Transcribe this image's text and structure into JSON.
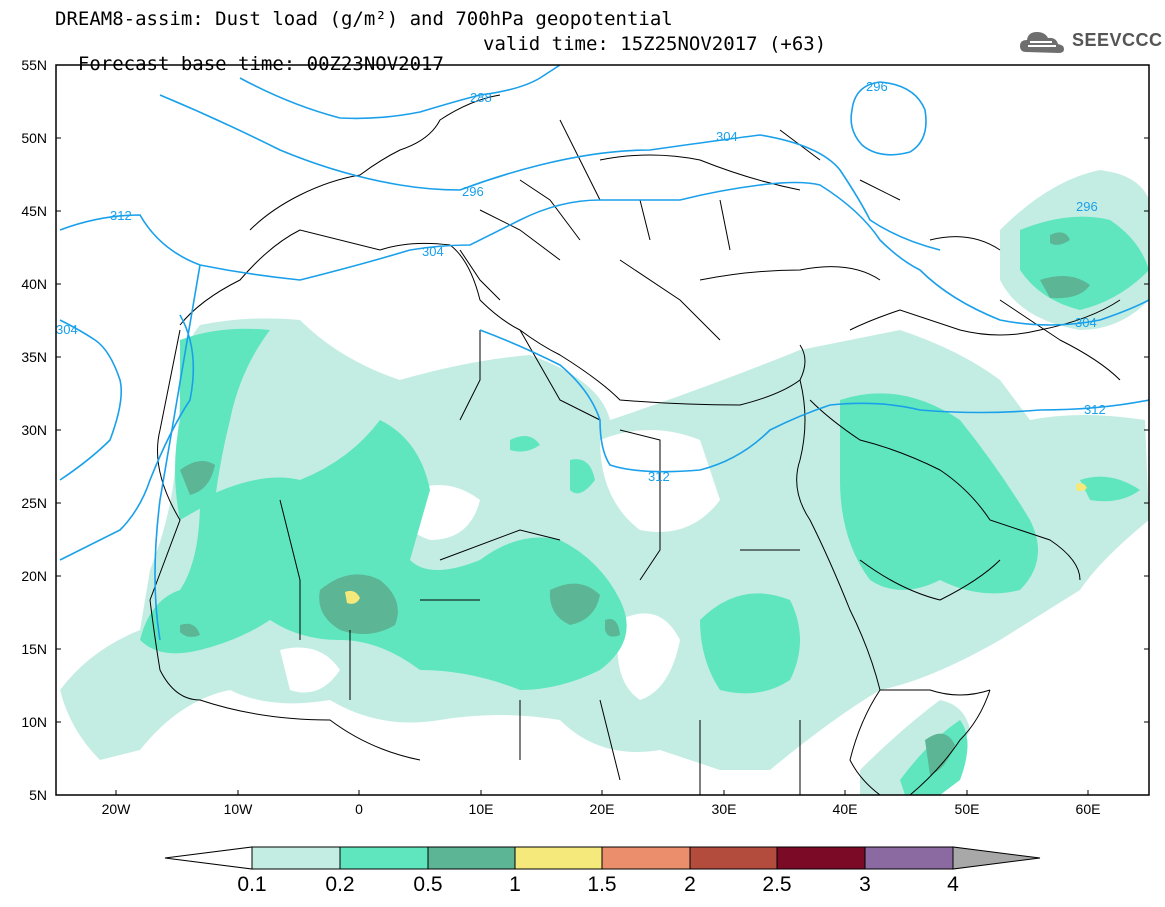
{
  "title": {
    "line1": "DREAM8-assim: Dust load (g/m²) and 700hPa geopotential",
    "forecast_base": "Forecast base time: 00Z23NOV2017",
    "valid_time": "valid time: 15Z25NOV2017 (+63)"
  },
  "logo": {
    "text": "SEEVCCC",
    "icon": "cloud-icon"
  },
  "map": {
    "lat_labels": [
      "55N",
      "50N",
      "45N",
      "40N",
      "35N",
      "30N",
      "25N",
      "20N",
      "15N",
      "10N",
      "5N"
    ],
    "lon_labels": [
      "20W",
      "10W",
      "0",
      "10E",
      "20E",
      "30E",
      "40E",
      "50E",
      "60E"
    ],
    "contour_labels": [
      "288",
      "296",
      "296",
      "296",
      "304",
      "304",
      "304",
      "304",
      "312",
      "312",
      "312"
    ]
  },
  "legend": {
    "labels": [
      "0.1",
      "0.2",
      "0.5",
      "1",
      "1.5",
      "2",
      "2.5",
      "3",
      "4"
    ],
    "colors": [
      "#ffffff",
      "#c3ede3",
      "#5fe6be",
      "#5cb594",
      "#f5e97c",
      "#ea8e6c",
      "#b44c3e",
      "#7a0a26",
      "#8a6aa0",
      "#a8a8a8"
    ]
  },
  "colors": {
    "dust_01": "#c3ede3",
    "dust_02": "#5fe6be",
    "dust_05": "#5cb594",
    "dust_1": "#f5e97c",
    "contour": "#1aa0ea"
  }
}
